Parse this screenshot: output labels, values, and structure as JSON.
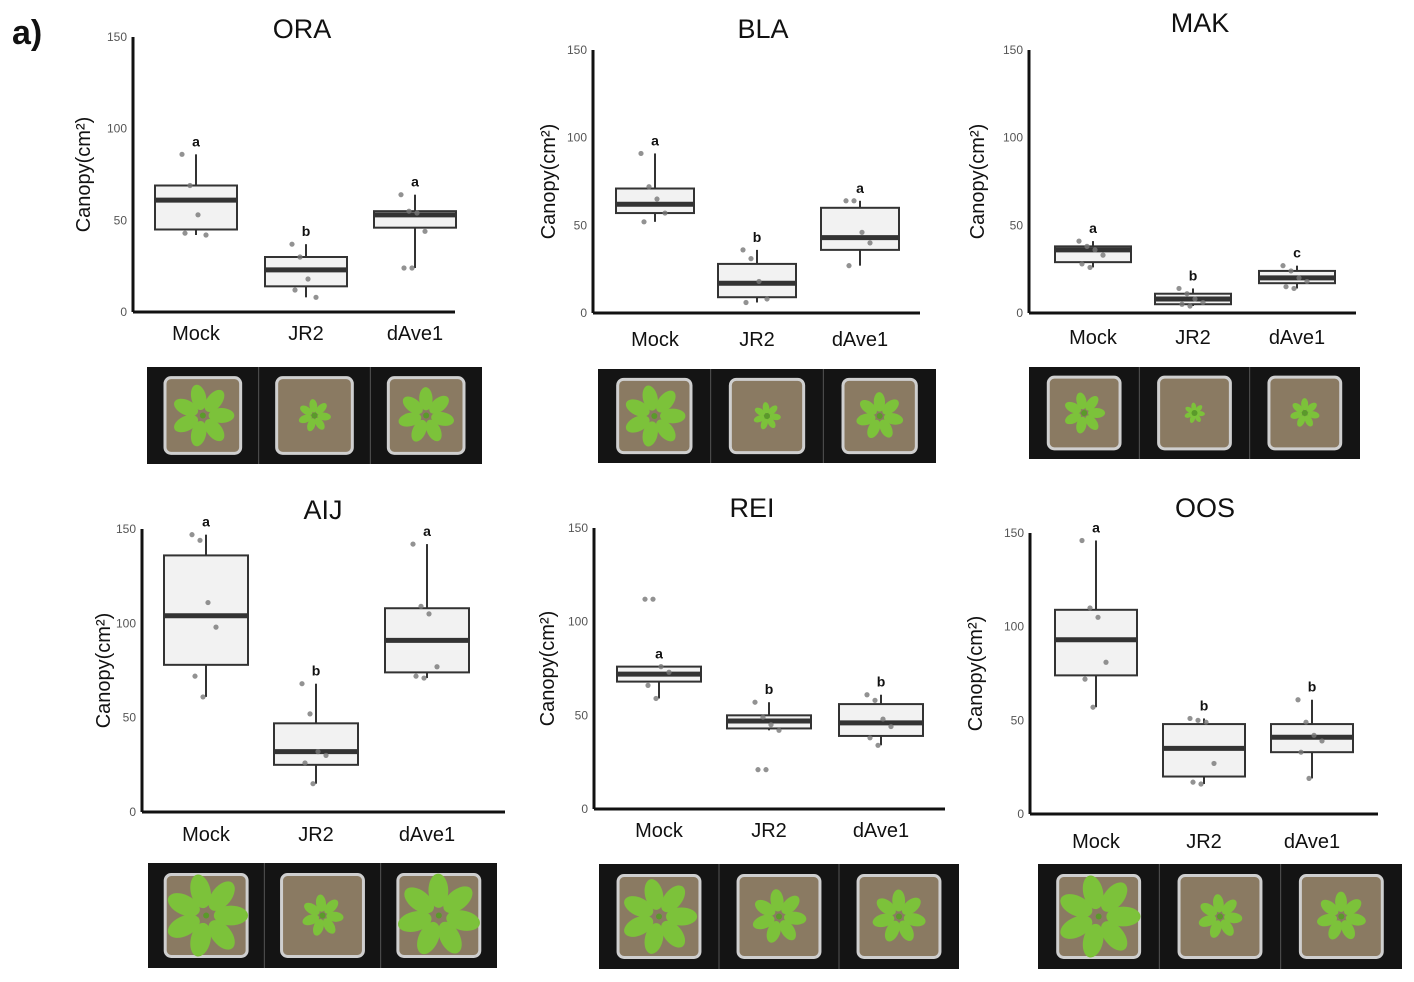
{
  "figure_label": "a)",
  "colors": {
    "box_fill": "#f2f2f2",
    "box_stroke": "#333333",
    "median": "#333333",
    "point": "#777777",
    "photo_bg": "#141414",
    "plant": "#7cc23a",
    "soil": "#8a7a62",
    "pot": "#cfcfcf"
  },
  "chart_data": [
    {
      "type": "box",
      "title": "ORA",
      "ylabel": "Canopy(cm²)",
      "ylim": [
        0,
        150
      ],
      "yticks": [
        "0",
        "50",
        "100",
        "150"
      ],
      "categories": [
        "Mock",
        "JR2",
        "dAve1"
      ],
      "groups": [
        {
          "name": "Mock",
          "letter": "a",
          "whisker_low": 42,
          "q1": 45,
          "median": 61,
          "q3": 69,
          "whisker_high": 86,
          "points": [
            86,
            69,
            53,
            42,
            43
          ]
        },
        {
          "name": "JR2",
          "letter": "b",
          "whisker_low": 8,
          "q1": 14,
          "median": 23,
          "q3": 30,
          "whisker_high": 37,
          "points": [
            37,
            30,
            18,
            8,
            12
          ]
        },
        {
          "name": "dAve1",
          "letter": "a",
          "whisker_low": 24,
          "q1": 46,
          "median": 53,
          "q3": 55,
          "whisker_high": 64,
          "points": [
            64,
            55,
            54,
            44,
            24,
            24
          ]
        }
      ]
    },
    {
      "type": "box",
      "title": "BLA",
      "ylabel": "Canopy(cm²)",
      "ylim": [
        0,
        150
      ],
      "yticks": [
        "0",
        "50",
        "100",
        "150"
      ],
      "categories": [
        "Mock",
        "JR2",
        "dAve1"
      ],
      "groups": [
        {
          "name": "Mock",
          "letter": "a",
          "whisker_low": 52,
          "q1": 57,
          "median": 62,
          "q3": 71,
          "whisker_high": 91,
          "points": [
            91,
            72,
            65,
            57,
            52
          ]
        },
        {
          "name": "JR2",
          "letter": "b",
          "whisker_low": 6,
          "q1": 9,
          "median": 17,
          "q3": 28,
          "whisker_high": 36,
          "points": [
            36,
            31,
            18,
            8,
            6
          ]
        },
        {
          "name": "dAve1",
          "letter": "a",
          "whisker_low": 27,
          "q1": 36,
          "median": 43,
          "q3": 60,
          "whisker_high": 64,
          "points": [
            64,
            64,
            46,
            40,
            27
          ]
        }
      ]
    },
    {
      "type": "box",
      "title": "MAK",
      "ylabel": "Canopy(cm²)",
      "ylim": [
        0,
        150
      ],
      "yticks": [
        "0",
        "50",
        "100",
        "150"
      ],
      "categories": [
        "Mock",
        "JR2",
        "dAve1"
      ],
      "groups": [
        {
          "name": "Mock",
          "letter": "a",
          "whisker_low": 26,
          "q1": 29,
          "median": 36,
          "q3": 38,
          "whisker_high": 41,
          "points": [
            41,
            38,
            36,
            33,
            28,
            26
          ]
        },
        {
          "name": "JR2",
          "letter": "b",
          "whisker_low": 4,
          "q1": 5,
          "median": 8,
          "q3": 11,
          "whisker_high": 14,
          "points": [
            14,
            11,
            8,
            6,
            5,
            4
          ]
        },
        {
          "name": "dAve1",
          "letter": "c",
          "whisker_low": 14,
          "q1": 17,
          "median": 20,
          "q3": 24,
          "whisker_high": 27,
          "points": [
            27,
            24,
            20,
            18,
            15,
            14
          ]
        }
      ]
    },
    {
      "type": "box",
      "title": "AIJ",
      "ylabel": "Canopy(cm²)",
      "ylim": [
        0,
        150
      ],
      "yticks": [
        "0",
        "50",
        "100",
        "150"
      ],
      "categories": [
        "Mock",
        "JR2",
        "dAve1"
      ],
      "groups": [
        {
          "name": "Mock",
          "letter": "a",
          "whisker_low": 61,
          "q1": 78,
          "median": 104,
          "q3": 136,
          "whisker_high": 147,
          "points": [
            147,
            144,
            111,
            98,
            72,
            61
          ]
        },
        {
          "name": "JR2",
          "letter": "b",
          "whisker_low": 15,
          "q1": 25,
          "median": 32,
          "q3": 47,
          "whisker_high": 68,
          "points": [
            68,
            52,
            32,
            30,
            26,
            15
          ]
        },
        {
          "name": "dAve1",
          "letter": "a",
          "whisker_low": 71,
          "q1": 74,
          "median": 91,
          "q3": 108,
          "whisker_high": 142,
          "points": [
            142,
            109,
            105,
            77,
            72,
            71
          ]
        }
      ]
    },
    {
      "type": "box",
      "title": "REI",
      "ylabel": "Canopy(cm²)",
      "ylim": [
        0,
        150
      ],
      "yticks": [
        "0",
        "50",
        "100",
        "150"
      ],
      "categories": [
        "Mock",
        "JR2",
        "dAve1"
      ],
      "groups": [
        {
          "name": "Mock",
          "letter": "a",
          "whisker_low": 59,
          "q1": 68,
          "median": 72,
          "q3": 76,
          "whisker_high": 76,
          "points": [
            112,
            112,
            76,
            73,
            66,
            59
          ]
        },
        {
          "name": "JR2",
          "letter": "b",
          "whisker_low": 42,
          "q1": 43,
          "median": 47,
          "q3": 50,
          "whisker_high": 57,
          "points": [
            57,
            49,
            45,
            42,
            21,
            21
          ]
        },
        {
          "name": "dAve1",
          "letter": "b",
          "whisker_low": 34,
          "q1": 39,
          "median": 46,
          "q3": 56,
          "whisker_high": 61,
          "points": [
            61,
            58,
            48,
            44,
            38,
            34
          ]
        }
      ]
    },
    {
      "type": "box",
      "title": "OOS",
      "ylabel": "Canopy(cm²)",
      "ylim": [
        0,
        150
      ],
      "yticks": [
        "0",
        "50",
        "100",
        "150"
      ],
      "categories": [
        "Mock",
        "JR2",
        "dAve1"
      ],
      "groups": [
        {
          "name": "Mock",
          "letter": "a",
          "whisker_low": 57,
          "q1": 74,
          "median": 93,
          "q3": 109,
          "whisker_high": 146,
          "points": [
            146,
            110,
            105,
            81,
            72,
            57
          ]
        },
        {
          "name": "JR2",
          "letter": "b",
          "whisker_low": 16,
          "q1": 20,
          "median": 35,
          "q3": 48,
          "whisker_high": 51,
          "points": [
            51,
            50,
            49,
            27,
            17,
            16
          ]
        },
        {
          "name": "dAve1",
          "letter": "b",
          "whisker_low": 19,
          "q1": 33,
          "median": 41,
          "q3": 48,
          "whisker_high": 61,
          "points": [
            61,
            49,
            42,
            39,
            33,
            19
          ]
        }
      ]
    }
  ]
}
